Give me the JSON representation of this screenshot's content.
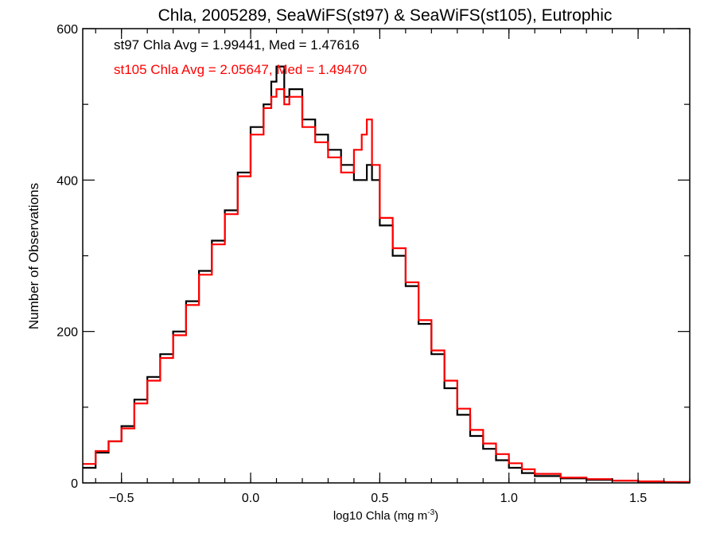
{
  "chart_data": {
    "type": "line",
    "title": "Chla, 2005289, SeaWiFS(st97) & SeaWiFS(st105), Eutrophic",
    "xlabel": "log10 Chla (mg m",
    "xlabel_sup": "-3",
    "xlabel_end": ")",
    "ylabel": "Number of Observations",
    "xlim": [
      -0.65,
      1.7
    ],
    "ylim": [
      0,
      600
    ],
    "xticks": [
      -0.5,
      0.0,
      0.5,
      1.0,
      1.5
    ],
    "xtick_labels": [
      "−0.5",
      "0.0",
      "0.5",
      "1.0",
      "1.5"
    ],
    "yticks": [
      0,
      200,
      400,
      600
    ],
    "ytick_labels": [
      "0",
      "200",
      "400",
      "600"
    ],
    "grid": false,
    "annotations": [
      {
        "text": "st97 Chla Avg = 1.99441, Med = 1.47616",
        "color": "#000000"
      },
      {
        "text": "st105 Chla Avg = 2.05647, Med = 1.49470",
        "color": "#ff0000"
      }
    ],
    "series": [
      {
        "color": "#000000",
        "x": [
          -0.65,
          -0.6,
          -0.55,
          -0.5,
          -0.45,
          -0.4,
          -0.35,
          -0.3,
          -0.25,
          -0.2,
          -0.15,
          -0.1,
          -0.05,
          0.0,
          0.05,
          0.08,
          0.1,
          0.13,
          0.15,
          0.2,
          0.25,
          0.3,
          0.35,
          0.4,
          0.45,
          0.47,
          0.5,
          0.55,
          0.6,
          0.65,
          0.7,
          0.75,
          0.8,
          0.85,
          0.9,
          0.95,
          1.0,
          1.05,
          1.1,
          1.2,
          1.3,
          1.4,
          1.5,
          1.6,
          1.7
        ],
        "y": [
          20,
          40,
          55,
          75,
          110,
          140,
          170,
          200,
          240,
          280,
          320,
          360,
          410,
          470,
          500,
          530,
          550,
          510,
          520,
          480,
          460,
          440,
          420,
          400,
          420,
          400,
          340,
          300,
          260,
          210,
          170,
          125,
          90,
          62,
          45,
          30,
          20,
          13,
          9,
          6,
          4,
          3,
          2,
          1,
          1
        ]
      },
      {
        "color": "#ff0000",
        "x": [
          -0.65,
          -0.6,
          -0.55,
          -0.5,
          -0.45,
          -0.4,
          -0.35,
          -0.3,
          -0.25,
          -0.2,
          -0.15,
          -0.1,
          -0.05,
          0.0,
          0.05,
          0.08,
          0.1,
          0.13,
          0.15,
          0.2,
          0.25,
          0.3,
          0.35,
          0.4,
          0.43,
          0.45,
          0.47,
          0.5,
          0.55,
          0.6,
          0.65,
          0.7,
          0.75,
          0.8,
          0.85,
          0.9,
          0.95,
          1.0,
          1.05,
          1.1,
          1.2,
          1.3,
          1.4,
          1.5,
          1.6,
          1.7
        ],
        "y": [
          25,
          42,
          55,
          72,
          105,
          135,
          165,
          195,
          235,
          275,
          315,
          355,
          405,
          460,
          495,
          510,
          520,
          500,
          510,
          470,
          450,
          430,
          410,
          440,
          460,
          480,
          420,
          350,
          310,
          265,
          215,
          175,
          135,
          98,
          70,
          52,
          38,
          26,
          18,
          12,
          7,
          5,
          3,
          2,
          1,
          1
        ]
      }
    ]
  }
}
